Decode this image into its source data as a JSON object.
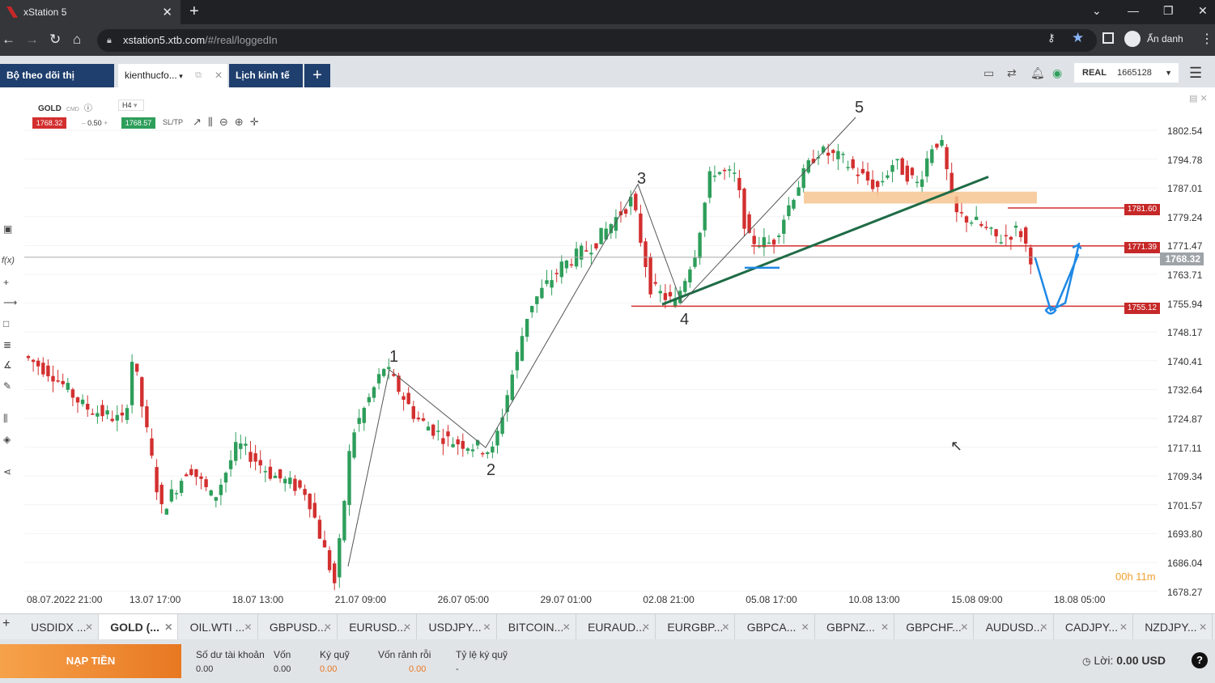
{
  "browser": {
    "tab_title": "xStation 5",
    "url_host": "xstation5.xtb.com",
    "url_path": "/#/real/loggedIn",
    "profile_label": "Ẩn danh"
  },
  "app": {
    "tabs": [
      "Bộ theo dõi thị trường",
      "kienthucfo...",
      "Lịch kinh tế",
      "+"
    ],
    "account_type": "REAL",
    "account_number": "1665128"
  },
  "instrument": {
    "symbol": "GOLD",
    "type": "CMD",
    "timeframe": "H4",
    "sell_price": "1768.32",
    "volume": "0.50",
    "buy_price": "1768.57",
    "sltp_label": "SL/TP",
    "countdown": "00h 11m"
  },
  "chart_data": {
    "type": "candlestick",
    "symbol": "GOLD",
    "timeframe": "H4",
    "y_ticks": [
      "1802.54",
      "1794.78",
      "1787.01",
      "1779.24",
      "1771.47",
      "1763.71",
      "1755.94",
      "1748.17",
      "1740.41",
      "1732.64",
      "1724.87",
      "1717.11",
      "1709.34",
      "1701.57",
      "1693.80",
      "1686.04",
      "1678.27"
    ],
    "x_ticks": [
      "08.07.2022 21:00",
      "13.07 17:00",
      "18.07 13:00",
      "21.07 09:00",
      "26.07 05:00",
      "29.07 01:00",
      "02.08 21:00",
      "05.08 17:00",
      "10.08 13:00",
      "15.08 09:00",
      "18.08 05:00"
    ],
    "current_price": "1768.32",
    "price_levels": [
      "1781.60",
      "1771.39",
      "1755.12"
    ],
    "wave_labels": [
      "1",
      "2",
      "3",
      "4",
      "5"
    ],
    "colors": {
      "up": "#2e9e5b",
      "down": "#d32f2f",
      "resistance": "#d32f2f",
      "trendline": "#1e6b45",
      "zone": "#f6c690",
      "projection": "#1e88e5"
    }
  },
  "bottom_tabs": [
    {
      "label": "USDIDX ...",
      "active": false
    },
    {
      "label": "GOLD (...",
      "active": true
    },
    {
      "label": "OIL.WTI ...",
      "active": false
    },
    {
      "label": "GBPUSD...",
      "active": false
    },
    {
      "label": "EURUSD...",
      "active": false
    },
    {
      "label": "USDJPY...",
      "active": false
    },
    {
      "label": "BITCOIN...",
      "active": false
    },
    {
      "label": "EURAUD...",
      "active": false
    },
    {
      "label": "EURGBP...",
      "active": false
    },
    {
      "label": "GBPCA...",
      "active": false
    },
    {
      "label": "GBPNZ...",
      "active": false
    },
    {
      "label": "GBPCHF...",
      "active": false
    },
    {
      "label": "AUDUSD...",
      "active": false
    },
    {
      "label": "CADJPY...",
      "active": false
    },
    {
      "label": "NZDJPY...",
      "active": false
    }
  ],
  "footer": {
    "deposit_label": "NẠP TIỀN",
    "stats": [
      {
        "label": "Số dư tài khoản",
        "value": "0.00"
      },
      {
        "label": "Vốn",
        "value": "0.00"
      },
      {
        "label": "Ký quỹ",
        "value": "0.00"
      },
      {
        "label": "Vốn rảnh rỗi",
        "value": "0.00"
      },
      {
        "label": "Tỷ lệ ký quỹ",
        "value": "-"
      }
    ],
    "profit_label": "Lời:",
    "profit_value": "0.00 USD"
  }
}
